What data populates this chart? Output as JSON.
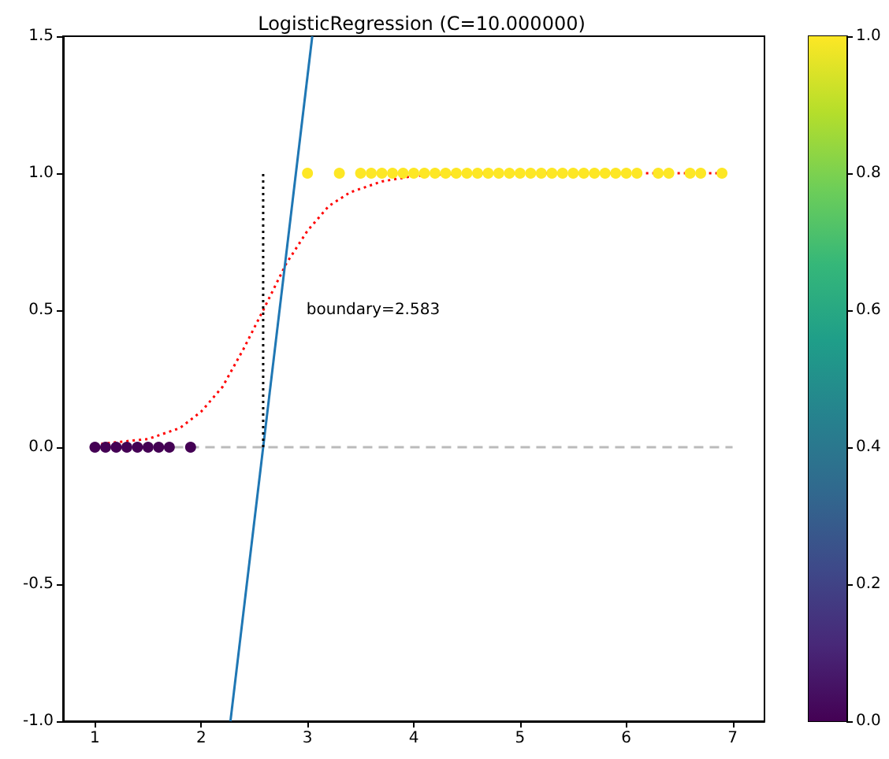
{
  "chart_data": {
    "type": "scatter",
    "title": "LogisticRegression (C=10.000000)",
    "xlim": [
      0.7,
      7.3
    ],
    "xticks": [
      1,
      2,
      3,
      4,
      5,
      6,
      7
    ],
    "ylim": [
      -1,
      1.5
    ],
    "yticks": [
      {
        "value": -1,
        "label": "-1.0"
      },
      {
        "value": -0.5,
        "label": "-0.5"
      },
      {
        "value": 0,
        "label": "0.0"
      },
      {
        "value": 0.5,
        "label": "0.5"
      },
      {
        "value": 1,
        "label": "1.0"
      },
      {
        "value": 1.5,
        "label": "1.5"
      }
    ],
    "clim": [
      0,
      1
    ],
    "cticks": [
      {
        "value": 0,
        "label": "0.0"
      },
      {
        "value": 0.2,
        "label": "0.2"
      },
      {
        "value": 0.4,
        "label": "0.4"
      },
      {
        "value": 0.6,
        "label": "0.6"
      },
      {
        "value": 0.8,
        "label": "0.8"
      },
      {
        "value": 1,
        "label": "1.0"
      }
    ],
    "grid": false,
    "annotations": [
      "boundary=2.583"
    ],
    "series": [
      {
        "marker": "circle",
        "x": [
          1.0,
          1.1,
          1.2,
          1.3,
          1.4,
          1.5,
          1.6,
          1.7,
          1.9,
          3.0,
          3.3,
          3.5,
          3.6,
          3.7,
          3.8,
          3.9,
          4.0,
          4.1,
          4.2,
          4.3,
          4.4,
          4.5,
          4.6,
          4.7,
          4.8,
          4.9,
          5.0,
          5.1,
          5.2,
          5.3,
          5.4,
          5.5,
          5.6,
          5.7,
          5.8,
          5.9,
          6.0,
          6.1,
          6.3,
          6.4,
          6.6,
          6.7,
          6.9
        ],
        "values": [
          0,
          0,
          0,
          0,
          0,
          0,
          0,
          0,
          0,
          1,
          1,
          1,
          1,
          1,
          1,
          1,
          1,
          1,
          1,
          1,
          1,
          1,
          1,
          1,
          1,
          1,
          1,
          1,
          1,
          1,
          1,
          1,
          1,
          1,
          1,
          1,
          1,
          1,
          1,
          1,
          1,
          1,
          1
        ],
        "colors": [
          "#440154",
          "#440154",
          "#440154",
          "#440154",
          "#440154",
          "#440154",
          "#440154",
          "#440154",
          "#440154",
          "#fde725",
          "#fde725",
          "#fde725",
          "#fde725",
          "#fde725",
          "#fde725",
          "#fde725",
          "#fde725",
          "#fde725",
          "#fde725",
          "#fde725",
          "#fde725",
          "#fde725",
          "#fde725",
          "#fde725",
          "#fde725",
          "#fde725",
          "#fde725",
          "#fde725",
          "#fde725",
          "#fde725",
          "#fde725",
          "#fde725",
          "#fde725",
          "#fde725",
          "#fde725",
          "#fde725",
          "#fde725",
          "#fde725",
          "#fde725",
          "#fde725",
          "#fde725",
          "#fde725",
          "#fde725"
        ]
      },
      {
        "type": "line",
        "color": "#ff0000",
        "line_style": "dotted",
        "marker": "none",
        "x": [
          1.0,
          1.5,
          1.8,
          2.0,
          2.2,
          2.4,
          2.583,
          2.8,
          3.0,
          3.2,
          3.4,
          3.7,
          4.0,
          4.5,
          5.0,
          6.0,
          6.9
        ],
        "values": [
          0.01,
          0.03,
          0.07,
          0.13,
          0.22,
          0.36,
          0.5,
          0.67,
          0.79,
          0.88,
          0.93,
          0.97,
          0.99,
          1.0,
          1.0,
          1.0,
          1.0
        ]
      },
      {
        "type": "line",
        "color": "#1f77b4",
        "line_style": "solid",
        "marker": "none",
        "x": [
          2.275,
          3.045
        ],
        "values": [
          -1,
          1.5
        ]
      },
      {
        "type": "line",
        "color": "#bbbbbb",
        "line_style": "dashed",
        "marker": "none",
        "x": [
          1,
          7
        ],
        "values": [
          0,
          0
        ]
      },
      {
        "type": "line",
        "color": "#000000",
        "line_style": "dotted",
        "marker": "none",
        "x": [
          2.583,
          2.583
        ],
        "values": [
          0,
          1
        ]
      }
    ]
  }
}
